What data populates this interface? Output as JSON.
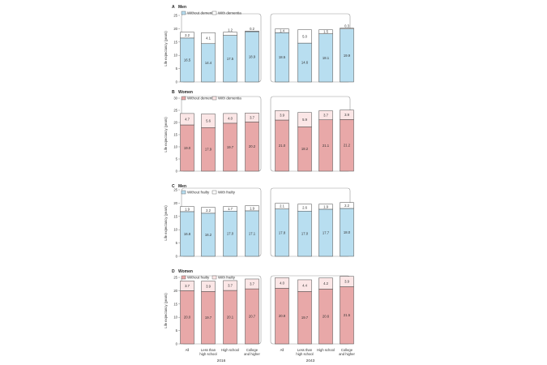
{
  "chart_data": [
    {
      "type": "bar",
      "stacked": true,
      "panel": "A",
      "title": "Men",
      "ylabel": "Life expectancy (years)",
      "ylim": [
        0,
        25
      ],
      "yticks": [
        0,
        5,
        10,
        15,
        20,
        25
      ],
      "categories": [
        "All",
        "Less than high school",
        "High school",
        "College and higher"
      ],
      "groups": [
        "2016",
        "2043"
      ],
      "legend": [
        "Without dementia",
        "With dementia"
      ],
      "colors": {
        "primary": "#b8def0",
        "secondary": "#ffffff"
      },
      "series": [
        {
          "name": "Without dementia",
          "values": [
            [
              16.5,
              14.4,
              17.5,
              18.9
            ],
            [
              18.5,
              14.6,
              18.1,
              19.9
            ]
          ]
        },
        {
          "name": "With dementia",
          "values": [
            [
              2.2,
              4.1,
              1.2,
              0.2
            ],
            [
              1.4,
              5.0,
              1.5,
              0.3
            ]
          ]
        }
      ]
    },
    {
      "type": "bar",
      "stacked": true,
      "panel": "B",
      "title": "Women",
      "ylabel": "Life expectancy (years)",
      "ylim": [
        0,
        30
      ],
      "yticks": [
        0,
        5,
        10,
        15,
        20,
        25,
        30
      ],
      "categories": [
        "All",
        "Less than high school",
        "High school",
        "College and higher"
      ],
      "groups": [
        "2016",
        "2043"
      ],
      "legend": [
        "Without dementia",
        "With dementia"
      ],
      "colors": {
        "primary": "#e8a8a8",
        "secondary": "#fbe6e6"
      },
      "series": [
        {
          "name": "Without dementia",
          "values": [
            [
              19.0,
              17.9,
              19.7,
              20.2
            ],
            [
              21.0,
              18.2,
              21.1,
              21.2
            ]
          ]
        },
        {
          "name": "With dementia",
          "values": [
            [
              4.7,
              5.6,
              4.0,
              3.7
            ],
            [
              3.9,
              5.9,
              3.7,
              3.9
            ]
          ]
        }
      ]
    },
    {
      "type": "bar",
      "stacked": true,
      "panel": "C",
      "title": "Men",
      "ylabel": "Life expectancy (years)",
      "ylim": [
        0,
        25
      ],
      "yticks": [
        0,
        5,
        10,
        15,
        20,
        25
      ],
      "categories": [
        "All",
        "Less than high school",
        "High school",
        "College and higher"
      ],
      "groups": [
        "2016",
        "2043"
      ],
      "legend": [
        "Without frailty",
        "With frailty"
      ],
      "colors": {
        "primary": "#b8def0",
        "secondary": "#ffffff"
      },
      "series": [
        {
          "name": "Without frailty",
          "values": [
            [
              16.8,
              16.2,
              17.0,
              17.1
            ],
            [
              17.8,
              17.0,
              17.7,
              18.0
            ]
          ]
        },
        {
          "name": "With frailty",
          "values": [
            [
              1.9,
              2.2,
              1.7,
              1.9
            ],
            [
              2.1,
              2.6,
              1.9,
              2.2
            ]
          ]
        }
      ]
    },
    {
      "type": "bar",
      "stacked": true,
      "panel": "D",
      "title": "Women",
      "ylabel": "Life expectancy (years)",
      "ylim": [
        0,
        25
      ],
      "yticks": [
        0,
        5,
        10,
        15,
        20,
        25
      ],
      "categories": [
        "All",
        "Less than high school",
        "High school",
        "College and higher"
      ],
      "groups": [
        "2016",
        "2043"
      ],
      "legend": [
        "Without frailty",
        "With frailty"
      ],
      "colors": {
        "primary": "#e8a8a8",
        "secondary": "#fbe6e6"
      },
      "series": [
        {
          "name": "Without frailty",
          "values": [
            [
              20.0,
              19.7,
              20.1,
              20.7
            ],
            [
              20.9,
              19.7,
              20.6,
              21.5
            ]
          ]
        },
        {
          "name": "With frailty",
          "values": [
            [
              3.7,
              3.9,
              3.7,
              3.7
            ],
            [
              4.0,
              4.4,
              4.2,
              3.9
            ]
          ]
        }
      ]
    }
  ]
}
